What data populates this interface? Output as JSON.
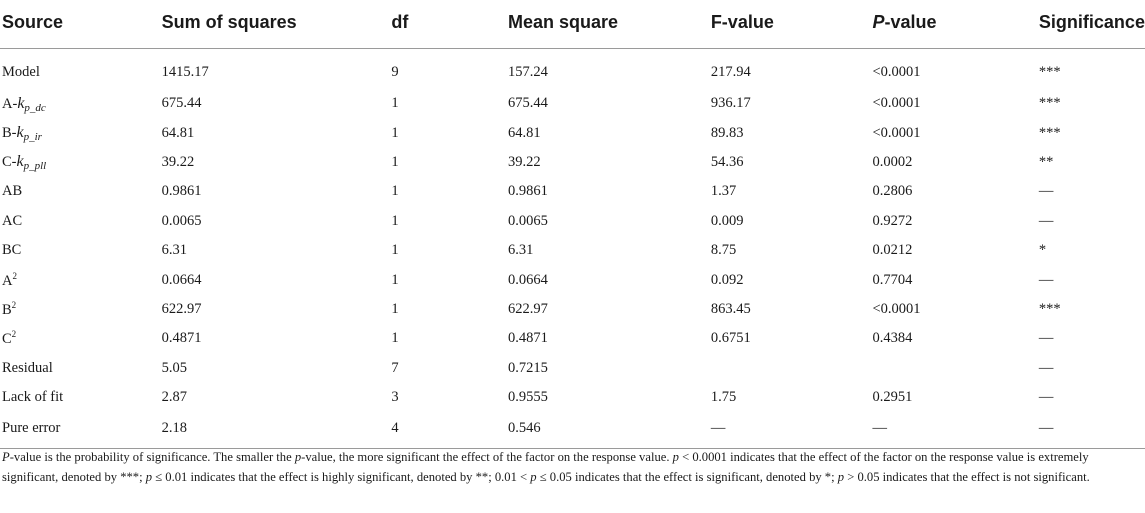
{
  "table": {
    "headers": [
      "Source",
      "Sum of squares",
      "df",
      "Mean square",
      "F-value",
      "P-value",
      "Significance"
    ],
    "rows": [
      {
        "source": "Model",
        "ss": "1415.17",
        "df": "9",
        "ms": "157.24",
        "f": "217.94",
        "p": "<0.0001",
        "sig": "***"
      },
      {
        "source_prefix": "A-",
        "source_k": "k",
        "source_sub": "p_dc",
        "ss": "675.44",
        "df": "1",
        "ms": "675.44",
        "f": "936.17",
        "p": "<0.0001",
        "sig": "***"
      },
      {
        "source_prefix": "B-",
        "source_k": "k",
        "source_sub": "p_ir",
        "ss": "64.81",
        "df": "1",
        "ms": "64.81",
        "f": "89.83",
        "p": "<0.0001",
        "sig": "***"
      },
      {
        "source_prefix": "C-",
        "source_k": "k",
        "source_sub": "p_pll",
        "ss": "39.22",
        "df": "1",
        "ms": "39.22",
        "f": "54.36",
        "p": "0.0002",
        "sig": "**"
      },
      {
        "source": "AB",
        "ss": "0.9861",
        "df": "1",
        "ms": "0.9861",
        "f": "1.37",
        "p": "0.2806",
        "sig": "—"
      },
      {
        "source": "AC",
        "ss": "0.0065",
        "df": "1",
        "ms": "0.0065",
        "f": "0.009",
        "p": "0.9272",
        "sig": "—"
      },
      {
        "source": "BC",
        "ss": "6.31",
        "df": "1",
        "ms": "6.31",
        "f": "8.75",
        "p": "0.0212",
        "sig": "*"
      },
      {
        "source_base": "A",
        "source_sup": "2",
        "ss": "0.0664",
        "df": "1",
        "ms": "0.0664",
        "f": "0.092",
        "p": "0.7704",
        "sig": "—"
      },
      {
        "source_base": "B",
        "source_sup": "2",
        "ss": "622.97",
        "df": "1",
        "ms": "622.97",
        "f": "863.45",
        "p": "<0.0001",
        "sig": "***"
      },
      {
        "source_base": "C",
        "source_sup": "2",
        "ss": "0.4871",
        "df": "1",
        "ms": "0.4871",
        "f": "0.6751",
        "p": "0.4384",
        "sig": "—"
      },
      {
        "source": "Residual",
        "ss": "5.05",
        "df": "7",
        "ms": "0.7215",
        "f": "",
        "p": "",
        "sig": "—"
      },
      {
        "source": "Lack of fit",
        "ss": "2.87",
        "df": "3",
        "ms": "0.9555",
        "f": "1.75",
        "p": "0.2951",
        "sig": "—"
      },
      {
        "source": "Pure error",
        "ss": "2.18",
        "df": "4",
        "ms": "0.546",
        "f": "—",
        "p": "—",
        "sig": "—"
      }
    ]
  },
  "note": {
    "p1": "P",
    "t1": "-value is the probability of significance. The smaller the ",
    "p2": "p",
    "t2": "-value, the more significant the effect of the factor on the response value. ",
    "p3": "p",
    "t3": " < 0.0001 indicates that the effect of the factor on the response value is extremely significant, denoted by ***; ",
    "p4": "p",
    "t4": " ≤ 0.01 indicates that the effect is highly significant, denoted by **; 0.01 < ",
    "p5": "p",
    "t5": " ≤ 0.05 indicates that the effect is significant, denoted by *; ",
    "p6": "p",
    "t6": " > 0.05 indicates that the effect is not significant."
  }
}
